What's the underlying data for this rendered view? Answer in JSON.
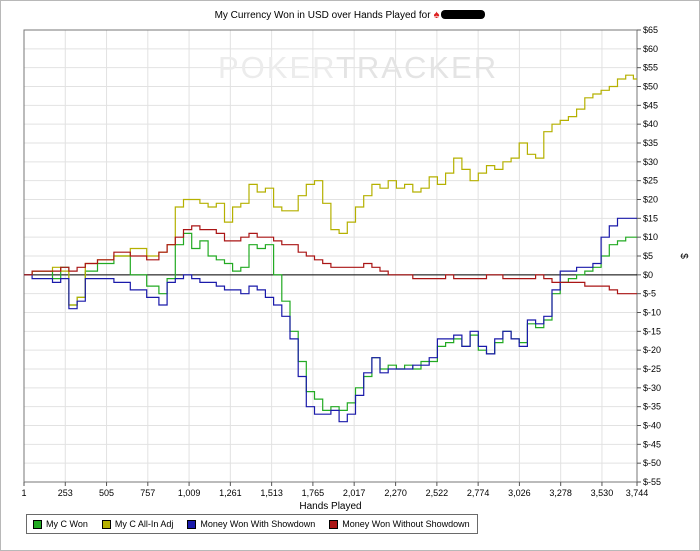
{
  "title": {
    "text": "My Currency Won in USD over Hands Played for"
  },
  "watermark": {
    "part1": "POKER",
    "part2": "TRACKER"
  },
  "chart_data": {
    "type": "line",
    "title": "My Currency Won in USD over Hands Played for",
    "xlabel": "Hands Played",
    "ylabel": "$",
    "xlim": [
      1,
      3744
    ],
    "ylim": [
      -55,
      65
    ],
    "x_ticks": [
      "1",
      "253",
      "505",
      "757",
      "1,009",
      "1,261",
      "1,513",
      "1,765",
      "2,017",
      "2,270",
      "2,522",
      "2,774",
      "3,026",
      "3,278",
      "3,530",
      "3,744"
    ],
    "y_ticks": [
      "$65",
      "$60",
      "$55",
      "$50",
      "$45",
      "$40",
      "$35",
      "$30",
      "$25",
      "$20",
      "$15",
      "$10",
      "$5",
      "$0",
      "$-5",
      "$-10",
      "$-15",
      "$-20",
      "$-25",
      "$-30",
      "$-35",
      "$-40",
      "$-45",
      "$-50",
      "$-55"
    ],
    "grid": true,
    "legend_position": "bottom",
    "series": [
      {
        "name": "My C Won",
        "color": "#22aa22",
        "x": [
          1,
          100,
          150,
          200,
          250,
          300,
          350,
          400,
          500,
          600,
          700,
          800,
          850,
          900,
          950,
          1000,
          1050,
          1100,
          1150,
          1200,
          1250,
          1300,
          1350,
          1400,
          1450,
          1500,
          1550,
          1600,
          1650,
          1700,
          1750,
          1800,
          1850,
          1900,
          1950,
          2000,
          2050,
          2100,
          2150,
          2200,
          2250,
          2300,
          2350,
          2400,
          2450,
          2500,
          2550,
          2600,
          2650,
          2700,
          2750,
          2800,
          2850,
          2900,
          2950,
          3000,
          3050,
          3100,
          3150,
          3200,
          3250,
          3300,
          3350,
          3400,
          3450,
          3500,
          3550,
          3600,
          3650,
          3700,
          3744
        ],
        "y": [
          0,
          1,
          1,
          -1,
          2,
          -8,
          -6,
          1,
          3,
          5,
          0,
          -3,
          -5,
          -1,
          8,
          11,
          7,
          9,
          5,
          4,
          3,
          1,
          2,
          8,
          7,
          8,
          0,
          -7,
          -15,
          -23,
          -31,
          -33,
          -36,
          -35,
          -36,
          -34,
          -30,
          -27,
          -22,
          -25,
          -24,
          -25,
          -24,
          -25,
          -23,
          -23,
          -19,
          -18,
          -17,
          -19,
          -16,
          -20,
          -21,
          -18,
          -15,
          -17,
          -18,
          -13,
          -14,
          -12,
          -5,
          -2,
          -1,
          0,
          1,
          2,
          5,
          8,
          9,
          10,
          10
        ]
      },
      {
        "name": "My C All-In Adj",
        "color": "#b5b000",
        "x": [
          1,
          100,
          150,
          200,
          250,
          300,
          350,
          400,
          500,
          600,
          700,
          800,
          850,
          900,
          950,
          1000,
          1050,
          1100,
          1150,
          1200,
          1250,
          1300,
          1350,
          1400,
          1450,
          1500,
          1550,
          1600,
          1650,
          1700,
          1750,
          1800,
          1850,
          1900,
          1950,
          2000,
          2050,
          2100,
          2150,
          2200,
          2250,
          2300,
          2350,
          2400,
          2450,
          2500,
          2550,
          2600,
          2650,
          2700,
          2750,
          2800,
          2850,
          2900,
          2950,
          3000,
          3050,
          3100,
          3150,
          3200,
          3250,
          3300,
          3350,
          3400,
          3450,
          3500,
          3550,
          3600,
          3650,
          3700,
          3744
        ],
        "y": [
          0,
          1,
          1,
          2,
          1,
          -8,
          -6,
          3,
          4,
          5,
          7,
          5,
          6,
          8,
          18,
          20,
          20,
          19,
          18,
          19,
          14,
          18,
          19,
          24,
          22,
          23,
          18,
          17,
          17,
          21,
          24,
          25,
          19,
          12,
          11,
          14,
          18,
          21,
          24,
          23,
          25,
          23,
          24,
          22,
          23,
          26,
          24,
          27,
          31,
          28,
          25,
          27,
          29,
          28,
          30,
          31,
          35,
          32,
          31,
          38,
          40,
          41,
          42,
          44,
          47,
          48,
          49,
          50,
          52,
          53,
          52
        ]
      },
      {
        "name": "Money Won With Showdown",
        "color": "#1a1aaa",
        "x": [
          1,
          100,
          150,
          200,
          250,
          300,
          350,
          400,
          500,
          600,
          700,
          800,
          850,
          900,
          950,
          1000,
          1050,
          1100,
          1150,
          1200,
          1250,
          1300,
          1350,
          1400,
          1450,
          1500,
          1550,
          1600,
          1650,
          1700,
          1750,
          1800,
          1850,
          1900,
          1950,
          2000,
          2050,
          2100,
          2150,
          2200,
          2250,
          2300,
          2350,
          2400,
          2450,
          2500,
          2550,
          2600,
          2650,
          2700,
          2750,
          2800,
          2850,
          2900,
          2950,
          3000,
          3050,
          3100,
          3150,
          3200,
          3250,
          3300,
          3350,
          3400,
          3450,
          3500,
          3550,
          3600,
          3650,
          3700,
          3744
        ],
        "y": [
          0,
          -1,
          -1,
          -2,
          -1,
          -9,
          -7,
          -1,
          -1,
          -2,
          -4,
          -6,
          -8,
          -2,
          -1,
          0,
          -1,
          -2,
          -2,
          -3,
          -4,
          -4,
          -5,
          -3,
          -4,
          -6,
          -8,
          -11,
          -17,
          -27,
          -35,
          -37,
          -37,
          -36,
          -39,
          -37,
          -32,
          -26,
          -22,
          -26,
          -25,
          -25,
          -25,
          -24,
          -24,
          -22,
          -17,
          -17,
          -16,
          -19,
          -15,
          -19,
          -21,
          -17,
          -15,
          -17,
          -19,
          -12,
          -13,
          -11,
          -4,
          1,
          1,
          2,
          2,
          3,
          10,
          13,
          15,
          15,
          15
        ]
      },
      {
        "name": "Money Won Without Showdown",
        "color": "#aa1515",
        "x": [
          1,
          100,
          150,
          200,
          250,
          300,
          350,
          400,
          500,
          600,
          700,
          800,
          850,
          900,
          950,
          1000,
          1050,
          1100,
          1150,
          1200,
          1250,
          1300,
          1350,
          1400,
          1450,
          1500,
          1550,
          1600,
          1650,
          1700,
          1750,
          1800,
          1850,
          1900,
          1950,
          2000,
          2050,
          2100,
          2150,
          2200,
          2250,
          2300,
          2350,
          2400,
          2450,
          2500,
          2550,
          2600,
          2650,
          2700,
          2750,
          2800,
          2850,
          2900,
          2950,
          3000,
          3050,
          3100,
          3150,
          3200,
          3250,
          3300,
          3350,
          3400,
          3450,
          3500,
          3550,
          3600,
          3650,
          3700,
          3744
        ],
        "y": [
          0,
          1,
          1,
          1,
          2,
          1,
          2,
          3,
          4,
          6,
          5,
          4,
          6,
          8,
          10,
          12,
          13,
          12,
          12,
          11,
          9,
          9,
          10,
          11,
          10,
          10,
          9,
          8,
          8,
          6,
          5,
          4,
          3,
          2,
          2,
          2,
          2,
          3,
          2,
          1,
          0,
          0,
          0,
          -1,
          -1,
          -1,
          -1,
          0,
          -1,
          -1,
          -1,
          -1,
          0,
          0,
          -1,
          -1,
          -1,
          -1,
          0,
          -1,
          -2,
          -2,
          -2,
          -2,
          -3,
          -3,
          -3,
          -4,
          -5,
          -5,
          -5
        ]
      }
    ]
  },
  "legend": {
    "items": [
      {
        "label": "My C Won",
        "color": "#22aa22"
      },
      {
        "label": "My C All-In Adj",
        "color": "#b5b000"
      },
      {
        "label": "Money Won With Showdown",
        "color": "#1a1aaa"
      },
      {
        "label": "Money Won Without Showdown",
        "color": "#aa1515"
      }
    ]
  }
}
